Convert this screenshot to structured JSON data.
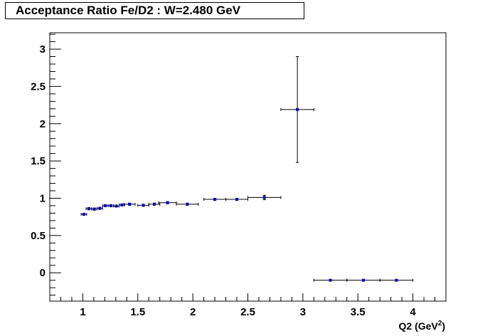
{
  "chart_data": {
    "type": "scatter",
    "title": "Acceptance Ratio Fe/D2 : W=2.480 GeV",
    "xlabel": "Q2 (GeV",
    "xlabel_sup": "2",
    "xlabel_close": ")",
    "ylabel": "",
    "xlim": [
      0.7,
      4.3
    ],
    "ylim": [
      -0.38,
      3.22
    ],
    "x_ticks": [
      {
        "value": 1,
        "label": "1"
      },
      {
        "value": 1.5,
        "label": "1.5"
      },
      {
        "value": 2,
        "label": "2"
      },
      {
        "value": 2.5,
        "label": "2.5"
      },
      {
        "value": 3,
        "label": "3"
      },
      {
        "value": 3.5,
        "label": "3.5"
      },
      {
        "value": 4,
        "label": "4"
      }
    ],
    "y_ticks": [
      {
        "value": 0,
        "label": "0"
      },
      {
        "value": 0.5,
        "label": "0.5"
      },
      {
        "value": 1,
        "label": "1"
      },
      {
        "value": 1.5,
        "label": "1.5"
      },
      {
        "value": 2,
        "label": "2"
      },
      {
        "value": 2.5,
        "label": "2.5"
      },
      {
        "value": 3,
        "label": "3"
      }
    ],
    "grid": false,
    "marker_color": "#0000cc",
    "points": [
      {
        "x": 1.01,
        "y": 0.785,
        "xerr": 0.025,
        "yerr": 0.015
      },
      {
        "x": 1.055,
        "y": 0.86,
        "xerr": 0.025,
        "yerr": 0.015
      },
      {
        "x": 1.105,
        "y": 0.855,
        "xerr": 0.025,
        "yerr": 0.015
      },
      {
        "x": 1.155,
        "y": 0.865,
        "xerr": 0.025,
        "yerr": 0.015
      },
      {
        "x": 1.205,
        "y": 0.9,
        "xerr": 0.025,
        "yerr": 0.015
      },
      {
        "x": 1.255,
        "y": 0.9,
        "xerr": 0.025,
        "yerr": 0.015
      },
      {
        "x": 1.305,
        "y": 0.895,
        "xerr": 0.025,
        "yerr": 0.015
      },
      {
        "x": 1.355,
        "y": 0.91,
        "xerr": 0.025,
        "yerr": 0.015
      },
      {
        "x": 1.425,
        "y": 0.92,
        "xerr": 0.05,
        "yerr": 0.015
      },
      {
        "x": 1.55,
        "y": 0.905,
        "xerr": 0.05,
        "yerr": 0.015
      },
      {
        "x": 1.65,
        "y": 0.92,
        "xerr": 0.05,
        "yerr": 0.015
      },
      {
        "x": 1.77,
        "y": 0.94,
        "xerr": 0.08,
        "yerr": 0.015
      },
      {
        "x": 1.95,
        "y": 0.92,
        "xerr": 0.1,
        "yerr": 0.015
      },
      {
        "x": 2.2,
        "y": 0.985,
        "xerr": 0.1,
        "yerr": 0.015
      },
      {
        "x": 2.4,
        "y": 0.985,
        "xerr": 0.1,
        "yerr": 0.015
      },
      {
        "x": 2.65,
        "y": 1.01,
        "xerr": 0.15,
        "yerr": 0.03
      },
      {
        "x": 2.95,
        "y": 2.19,
        "xerr": 0.15,
        "yerr": 0.71
      },
      {
        "x": 3.25,
        "y": -0.1,
        "xerr": 0.15,
        "yerr": 0.0
      },
      {
        "x": 3.55,
        "y": -0.1,
        "xerr": 0.15,
        "yerr": 0.0
      },
      {
        "x": 3.85,
        "y": -0.1,
        "xerr": 0.15,
        "yerr": 0.0
      }
    ]
  }
}
